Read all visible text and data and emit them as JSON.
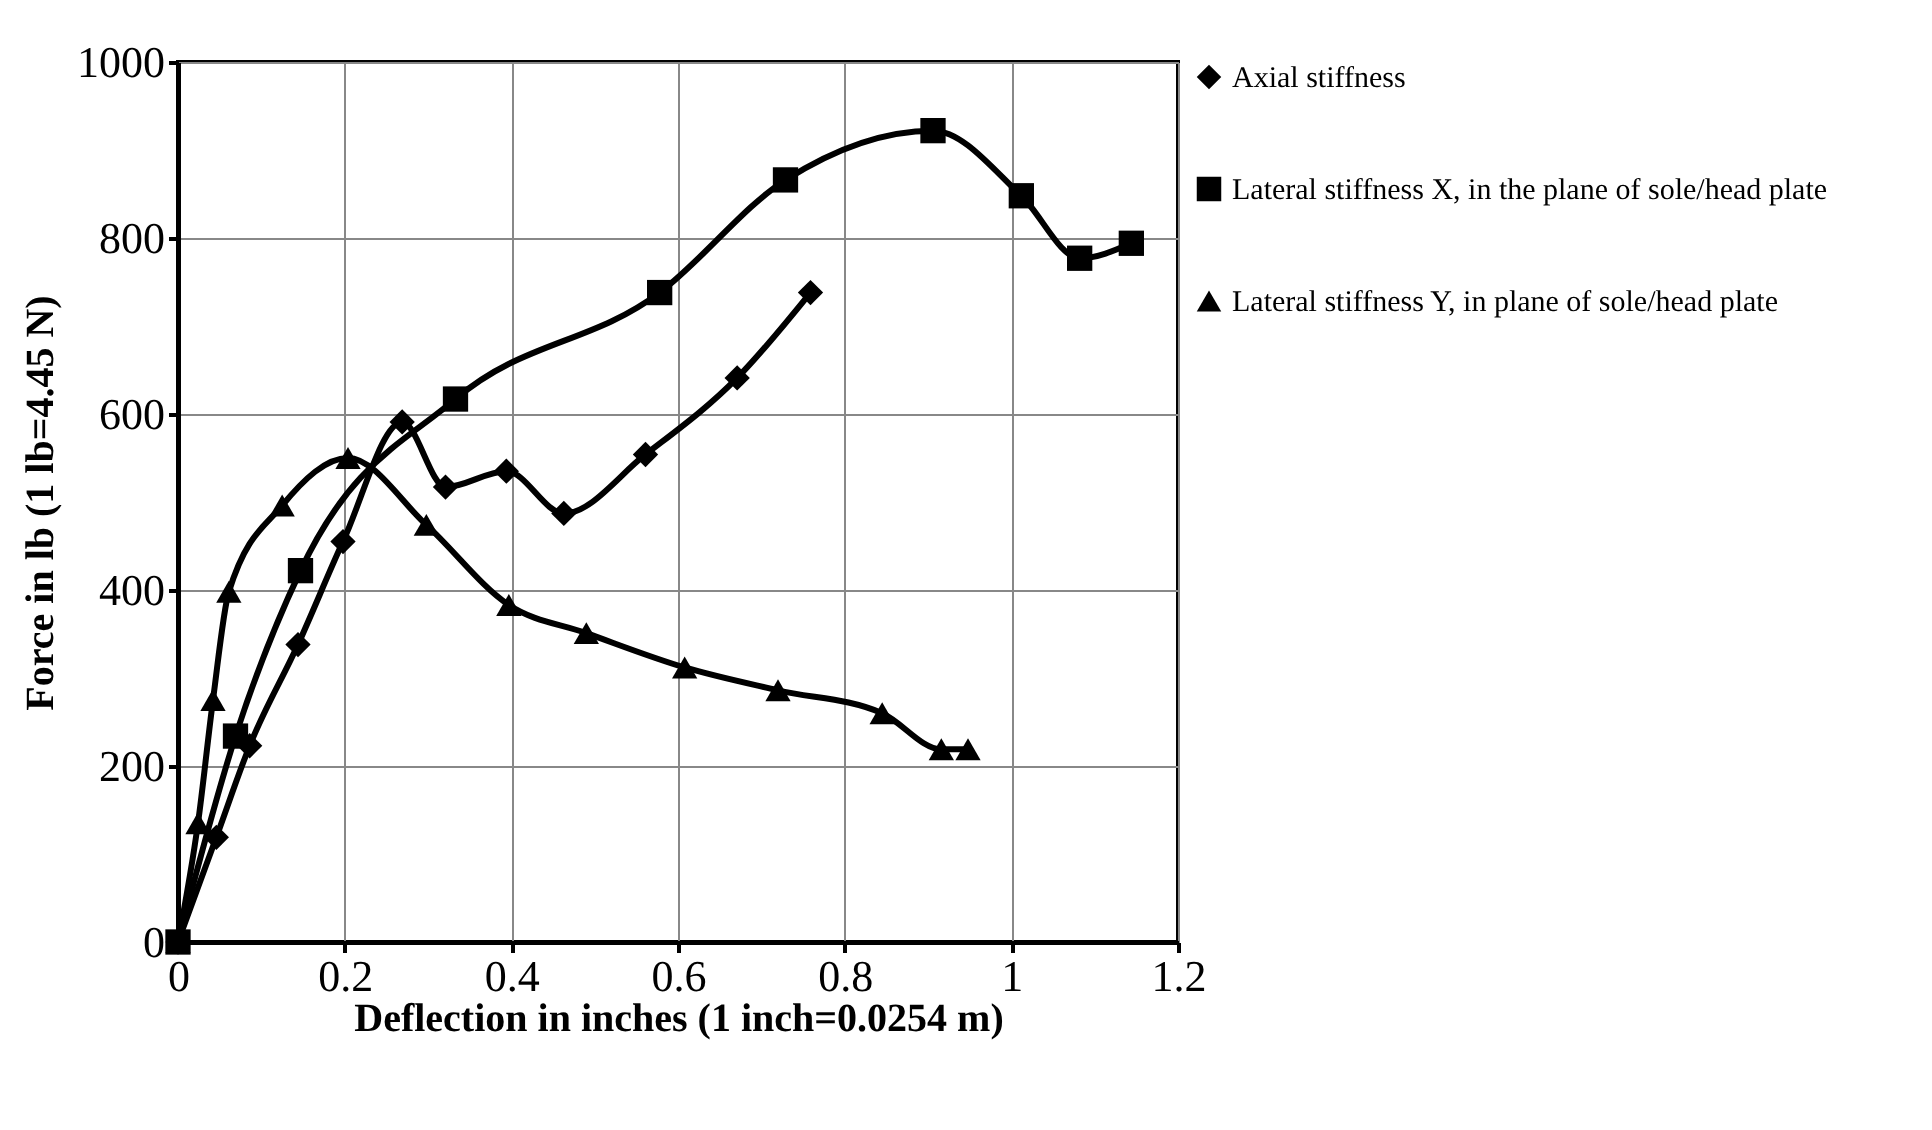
{
  "chart_data": {
    "type": "line",
    "xlabel": "Deflection in inches (1 inch=0.0254 m)",
    "ylabel": "Force in lb (1 lb=4.45 N)",
    "xlim": [
      0,
      1.2
    ],
    "xticks": [
      0,
      0.2,
      0.4,
      0.6,
      0.8,
      1,
      1.2
    ],
    "ylim": [
      0,
      1000
    ],
    "yticks": [
      0,
      200,
      400,
      600,
      800,
      1000
    ],
    "grid": true,
    "legend": "right",
    "series": [
      {
        "name": "Axial stiffness",
        "color": "#000000",
        "marker": "diamond",
        "x": [
          0,
          0.046,
          0.086,
          0.144,
          0.198,
          0.269,
          0.321,
          0.394,
          0.463,
          0.561,
          0.671,
          0.759
        ],
        "values": [
          0,
          119,
          223,
          338,
          455,
          591,
          517,
          535,
          487,
          554,
          641,
          738
        ]
      },
      {
        "name": "Lateral stiffness X, in the plane of sole/head plate",
        "color": "#000000",
        "marker": "square",
        "x": [
          0,
          0.069,
          0.147,
          0.333,
          0.578,
          0.729,
          0.906,
          1.012,
          1.082,
          1.144
        ],
        "values": [
          0,
          234,
          422,
          617,
          738,
          866,
          922,
          848,
          777,
          794
        ]
      },
      {
        "name": "Lateral stiffness Y, in plane of sole/head plate",
        "color": "#000000",
        "marker": "triangle",
        "x": [
          0,
          0.024,
          0.042,
          0.061,
          0.125,
          0.204,
          0.298,
          0.397,
          0.49,
          0.608,
          0.72,
          0.845,
          0.916,
          0.948
        ],
        "values": [
          0,
          135,
          275,
          398,
          496,
          550,
          474,
          383,
          351,
          312,
          286,
          260,
          219,
          219
        ]
      }
    ]
  }
}
